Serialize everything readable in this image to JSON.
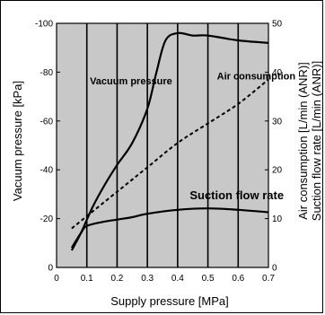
{
  "chart_data": {
    "type": "line",
    "xlabel": "Supply pressure [MPa]",
    "ylabel_left": "Vacuum pressure [kPa]",
    "ylabel_right_1": "Air consumption [L/min (ANR)]",
    "ylabel_right_2": "Suction flow rate [L/min (ANR)]",
    "x_ticks": [
      "0",
      "0.1",
      "0.2",
      "0.3",
      "0.4",
      "0.5",
      "0.6",
      "0.7"
    ],
    "y_left_ticks": [
      "0",
      "-20",
      "-40",
      "-60",
      "-80",
      "-100"
    ],
    "y_right_ticks": [
      "0",
      "10",
      "20",
      "30",
      "40",
      "50"
    ],
    "xlim": [
      0,
      0.7
    ],
    "ylim_left": [
      0,
      -100
    ],
    "ylim_right": [
      0,
      50
    ],
    "grid": "vertical",
    "background_color": "#c8c8c8",
    "series": [
      {
        "name": "Vacuum pressure",
        "axis": "left",
        "style": "solid",
        "x": [
          0.05,
          0.08,
          0.12,
          0.16,
          0.2,
          0.25,
          0.3,
          0.33,
          0.36,
          0.4,
          0.45,
          0.5,
          0.6,
          0.7
        ],
        "y": [
          -7,
          -14,
          -25,
          -34,
          -42,
          -51,
          -65,
          -80,
          -93,
          -96,
          -95,
          -95,
          -93,
          -92
        ]
      },
      {
        "name": "Air consumption",
        "axis": "right",
        "style": "dashed",
        "x": [
          0.05,
          0.1,
          0.2,
          0.3,
          0.4,
          0.5,
          0.6,
          0.7
        ],
        "y": [
          8,
          10.5,
          15.5,
          20.5,
          25.5,
          29.5,
          33.5,
          38.5
        ]
      },
      {
        "name": "Suction flow rate",
        "axis": "right",
        "style": "solid",
        "x": [
          0.05,
          0.08,
          0.1,
          0.15,
          0.2,
          0.25,
          0.3,
          0.4,
          0.5,
          0.6,
          0.7
        ],
        "y": [
          4,
          7,
          8.5,
          9.3,
          9.8,
          10.3,
          11,
          11.8,
          12.1,
          11.8,
          11.3
        ]
      }
    ],
    "annotations": [
      {
        "text": "Vacuum pressure",
        "x": 0.11,
        "y_left": -75,
        "size": "small"
      },
      {
        "text": "Air consumption",
        "x": 0.53,
        "y_left": -77,
        "size": "small"
      },
      {
        "text": "Suction flow rate",
        "x": 0.44,
        "y_left": -28,
        "size": "large"
      }
    ]
  }
}
